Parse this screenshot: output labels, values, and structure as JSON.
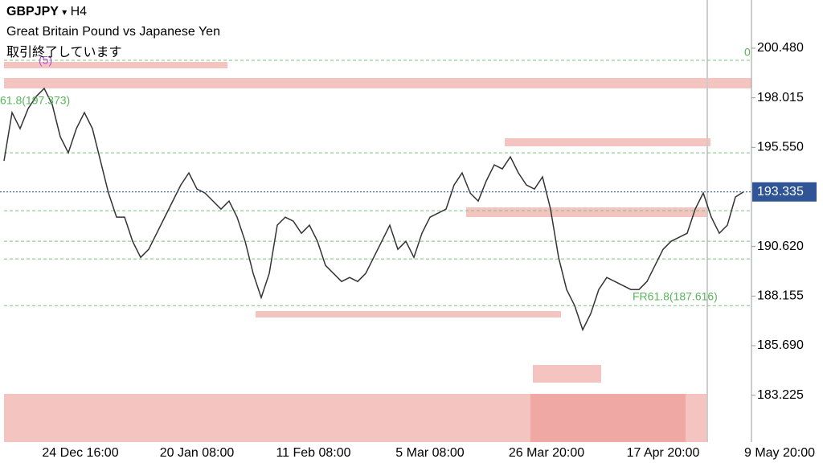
{
  "header": {
    "symbol": "GBPJPY",
    "timeframe": "H4",
    "title": "Great Britain Pound vs Japanese Yen",
    "status": "取引終了しています"
  },
  "price_axis": {
    "ylim": [
      180.894,
      202.878
    ],
    "ticks": [
      {
        "value": 200.48,
        "label": "200.480"
      },
      {
        "value": 198.015,
        "label": "198.015"
      },
      {
        "value": 195.55,
        "label": "195.550"
      },
      {
        "value": 190.62,
        "label": "190.620"
      },
      {
        "value": 188.155,
        "label": "188.155"
      },
      {
        "value": 185.69,
        "label": "185.690"
      },
      {
        "value": 183.225,
        "label": "183.225"
      }
    ]
  },
  "current_price": {
    "value": 193.335,
    "label": "193.335"
  },
  "time_axis": [
    "24 Dec 16:00",
    "20 Jan 08:00",
    "11 Feb 08:00",
    "5 Mar 08:00",
    "26 Mar 20:00",
    "17 Apr 20:00",
    "9 May 20:00"
  ],
  "annotations": {
    "fib_zero": "0",
    "wave": "(5)",
    "fib_upper": "61.8(197.373)",
    "fib_lower": "FR61.8(187.616)"
  },
  "levels": [
    199.88,
    195.28,
    192.4,
    190.88,
    190.0,
    187.68
  ],
  "closes": [
    194.88,
    197.28,
    196.48,
    197.48,
    198.08,
    198.48,
    197.68,
    196.08,
    195.28,
    196.48,
    197.28,
    196.48,
    194.88,
    193.28,
    192.08,
    192.08,
    190.88,
    190.08,
    190.48,
    191.28,
    192.08,
    192.88,
    193.68,
    194.28,
    193.48,
    193.28,
    192.88,
    192.48,
    192.88,
    192.08,
    190.88,
    189.28,
    188.08,
    189.28,
    191.68,
    192.08,
    191.88,
    191.28,
    191.68,
    190.88,
    189.68,
    189.28,
    188.88,
    189.08,
    188.88,
    189.28,
    190.08,
    190.88,
    191.68,
    190.48,
    190.88,
    190.08,
    191.28,
    192.08,
    192.28,
    192.48,
    193.68,
    194.28,
    193.28,
    192.88,
    193.88,
    194.68,
    194.48,
    195.08,
    194.28,
    193.68,
    193.48,
    194.08,
    192.48,
    190.08,
    188.48,
    187.68,
    186.48,
    187.28,
    188.48,
    189.08,
    188.88,
    188.68,
    188.48,
    188.48,
    188.88,
    189.68,
    190.48,
    190.88,
    191.08,
    191.28,
    192.48,
    193.28,
    192.08,
    191.28,
    191.68,
    193.08,
    193.335
  ]
}
